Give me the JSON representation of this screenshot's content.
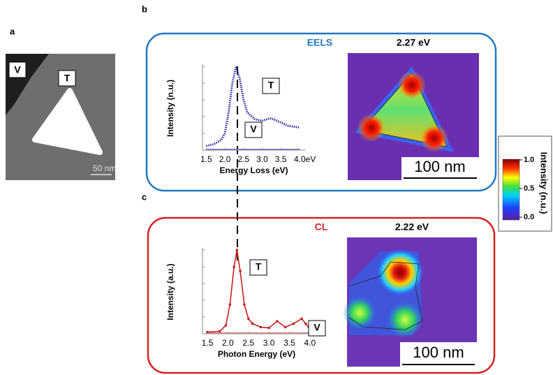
{
  "panel_labels": [
    "a",
    "b",
    "c"
  ],
  "panel_a": {
    "labels": [
      "V",
      "T"
    ],
    "scale_bar": "50 nm"
  },
  "eels": {
    "title": "EELS",
    "map_title": "2.27 eV",
    "scale_bar": "100 nm"
  },
  "cl": {
    "title": "CL",
    "map_title": "2.22 eV",
    "scale_bar": "100 nm"
  },
  "colorbar": {
    "title": "Intensity (n.u.)",
    "ticks": [
      {
        "value": 0,
        "label": "0.0"
      },
      {
        "value": 0.5,
        "label": "0.5"
      },
      {
        "value": 1,
        "label": "1.0"
      }
    ]
  },
  "chart_data": [
    {
      "type": "line",
      "x_label": "Energy Loss (eV)",
      "y_label": "Intensity (n.u.)",
      "x": [
        1.5,
        1.7,
        1.9,
        2.0,
        2.1,
        2.2,
        2.3,
        2.4,
        2.5,
        2.6,
        2.8,
        3.0,
        3.2,
        3.3,
        3.5,
        3.7,
        4.0
      ],
      "series": [
        {
          "name": "T",
          "color": "#2a2aa0",
          "values": [
            0.05,
            0.07,
            0.12,
            0.2,
            0.45,
            0.8,
            1.0,
            0.85,
            0.6,
            0.45,
            0.37,
            0.35,
            0.38,
            0.37,
            0.33,
            0.29,
            0.27
          ]
        },
        {
          "name": "V",
          "color": "#7a7ad8",
          "values": [
            0.01,
            0.01,
            0.01,
            0.01,
            0.01,
            0.01,
            0.01,
            0.01,
            0.01,
            0.01,
            0.01,
            0.01,
            0.01,
            0.01,
            0.01,
            0.01,
            0.01
          ]
        }
      ],
      "xlim": [
        1.4,
        4.15
      ],
      "xticks": [
        1.5,
        {
          "value": 2,
          "label": "2.0"
        },
        2.5,
        {
          "value": 3,
          "label": "3.0"
        },
        3.5,
        {
          "value": 4,
          "label": "4.0eV"
        }
      ],
      "ylim": [
        0,
        1
      ]
    },
    {
      "type": "line",
      "x_label": "Photon Energy (eV)",
      "y_label": "Intensity (a.u.)",
      "x": [
        1.5,
        1.8,
        1.95,
        2.05,
        2.15,
        2.22,
        2.3,
        2.4,
        2.5,
        2.6,
        2.8,
        3.0,
        3.2,
        3.4,
        3.6,
        3.8,
        3.9,
        4.0
      ],
      "series": [
        {
          "name": "T",
          "color": "#c81e1e",
          "values": [
            0.02,
            0.03,
            0.1,
            0.35,
            0.8,
            1.0,
            0.75,
            0.35,
            0.18,
            0.12,
            0.08,
            0.07,
            0.15,
            0.08,
            0.12,
            0.18,
            0.12,
            0.05
          ]
        },
        {
          "name": "V",
          "color": "#d85050",
          "values": [
            0.01,
            0.01,
            0.01,
            0.01,
            0.01,
            0.01,
            0.01,
            0.01,
            0.01,
            0.01,
            0.01,
            0.01,
            0.01,
            0.01,
            0.01,
            0.01,
            0.01,
            0.01
          ]
        }
      ],
      "xlim": [
        1.38,
        4.02
      ],
      "xticks": [
        1.5,
        {
          "value": 2,
          "label": "2.0"
        },
        2.5,
        {
          "value": 3,
          "label": "3.0"
        },
        3.5,
        {
          "value": 4,
          "label": "4.0"
        }
      ],
      "ylim": [
        0,
        1
      ]
    }
  ]
}
